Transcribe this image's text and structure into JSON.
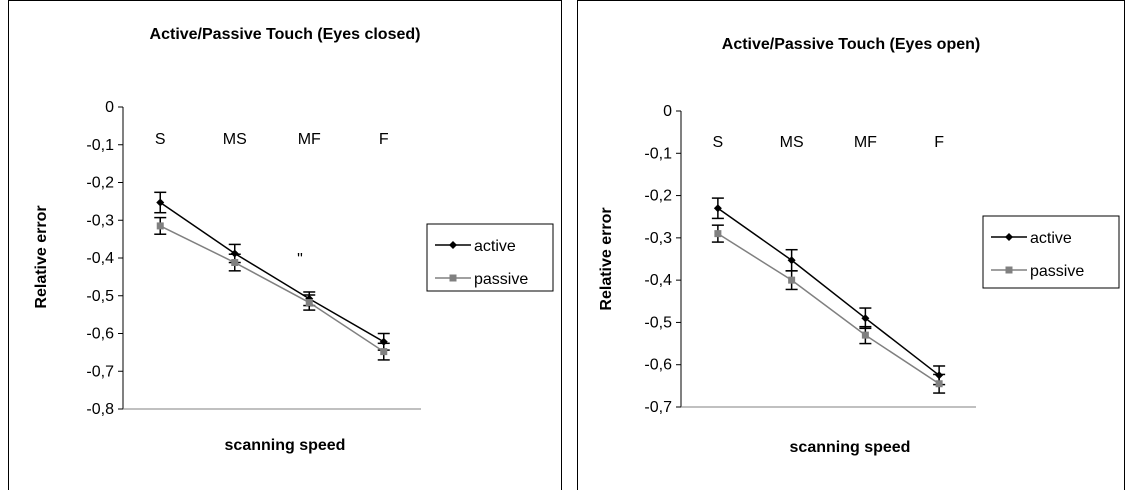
{
  "chart_data": [
    {
      "type": "line",
      "title": "Active/Passive Touch (Eyes closed)",
      "xlabel": "scanning speed",
      "ylabel": "Relative error",
      "categories": [
        "S",
        "MS",
        "MF",
        "F"
      ],
      "ylim": [
        -0.8,
        0
      ],
      "yticks": [
        "0",
        "-0,1",
        "-0,2",
        "-0,3",
        "-0,4",
        "-0,5",
        "-0,6",
        "-0,7",
        "-0,8"
      ],
      "annotation": "\"",
      "legend": "right",
      "grid": false,
      "series": [
        {
          "name": "active",
          "values": [
            -0.253,
            -0.388,
            -0.508,
            -0.622
          ],
          "errors": [
            0.027,
            0.024,
            0.018,
            0.022
          ],
          "color": "#000000",
          "marker": "diamond"
        },
        {
          "name": "passive",
          "values": [
            -0.315,
            -0.412,
            -0.518,
            -0.648
          ],
          "errors": [
            0.022,
            0.022,
            0.02,
            0.022
          ],
          "color": "#808080",
          "marker": "square"
        }
      ]
    },
    {
      "type": "line",
      "title": "Active/Passive Touch (Eyes open)",
      "xlabel": "scanning speed",
      "ylabel": "Relative error",
      "categories": [
        "S",
        "MS",
        "MF",
        "F"
      ],
      "ylim": [
        -0.7,
        0
      ],
      "yticks": [
        "0",
        "-0,1",
        "-0,2",
        "-0,3",
        "-0,4",
        "-0,5",
        "-0,6",
        "-0,7"
      ],
      "annotation": "",
      "legend": "right",
      "grid": false,
      "series": [
        {
          "name": "active",
          "values": [
            -0.23,
            -0.353,
            -0.49,
            -0.625
          ],
          "errors": [
            0.024,
            0.025,
            0.024,
            0.022
          ],
          "color": "#000000",
          "marker": "diamond"
        },
        {
          "name": "passive",
          "values": [
            -0.29,
            -0.4,
            -0.53,
            -0.645
          ],
          "errors": [
            0.02,
            0.022,
            0.02,
            0.022
          ],
          "color": "#808080",
          "marker": "square"
        }
      ]
    }
  ]
}
